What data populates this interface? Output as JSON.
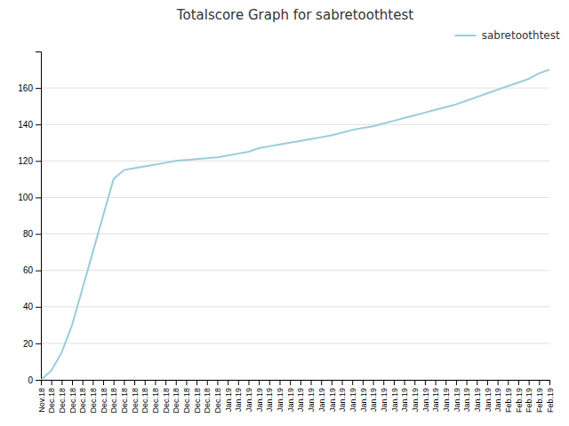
{
  "chart_data": {
    "type": "line",
    "title": "Totalscore Graph for sabretoothtest",
    "categories": [
      "Nov.18",
      "Dec.18",
      "Dec.18",
      "Dec.18",
      "Dec.18",
      "Dec.18",
      "Dec.18",
      "Dec.18",
      "Dec.18",
      "Dec.18",
      "Dec.18",
      "Dec.18",
      "Dec.18",
      "Dec.18",
      "Dec.18",
      "Dec.18",
      "Dec.18",
      "Dec.18",
      "Jan.19",
      "Jan.19",
      "Jan.19",
      "Jan.19",
      "Jan.19",
      "Jan.19",
      "Jan.19",
      "Jan.19",
      "Jan.19",
      "Jan.19",
      "Jan.19",
      "Jan.19",
      "Jan.19",
      "Jan.19",
      "Jan.19",
      "Jan.19",
      "Jan.19",
      "Jan.19",
      "Jan.19",
      "Jan.19",
      "Jan.19",
      "Jan.19",
      "Jan.19",
      "Jan.19",
      "Jan.19",
      "Jan.19",
      "Jan.19",
      "Feb.19",
      "Feb.19",
      "Feb.19",
      "Feb.19",
      "Feb.19"
    ],
    "series": [
      {
        "name": "sabretoothtest",
        "color": "#99CCDD",
        "values": [
          0,
          5,
          15,
          30,
          50,
          70,
          90,
          110,
          115,
          116,
          117,
          118,
          119,
          120,
          120.5,
          121,
          121.5,
          122,
          123,
          124,
          125,
          127,
          128,
          129,
          130,
          131,
          132,
          133,
          134,
          135.5,
          137,
          138,
          139,
          140.5,
          142,
          143.5,
          145,
          146.5,
          148,
          149.5,
          151,
          153,
          155,
          157,
          159,
          161,
          163,
          165,
          168,
          170
        ]
      }
    ],
    "ylim": [
      0,
      180
    ],
    "yticks": [
      0,
      20,
      40,
      60,
      80,
      100,
      120,
      140,
      160
    ],
    "grid": true,
    "legend": "upper right"
  }
}
